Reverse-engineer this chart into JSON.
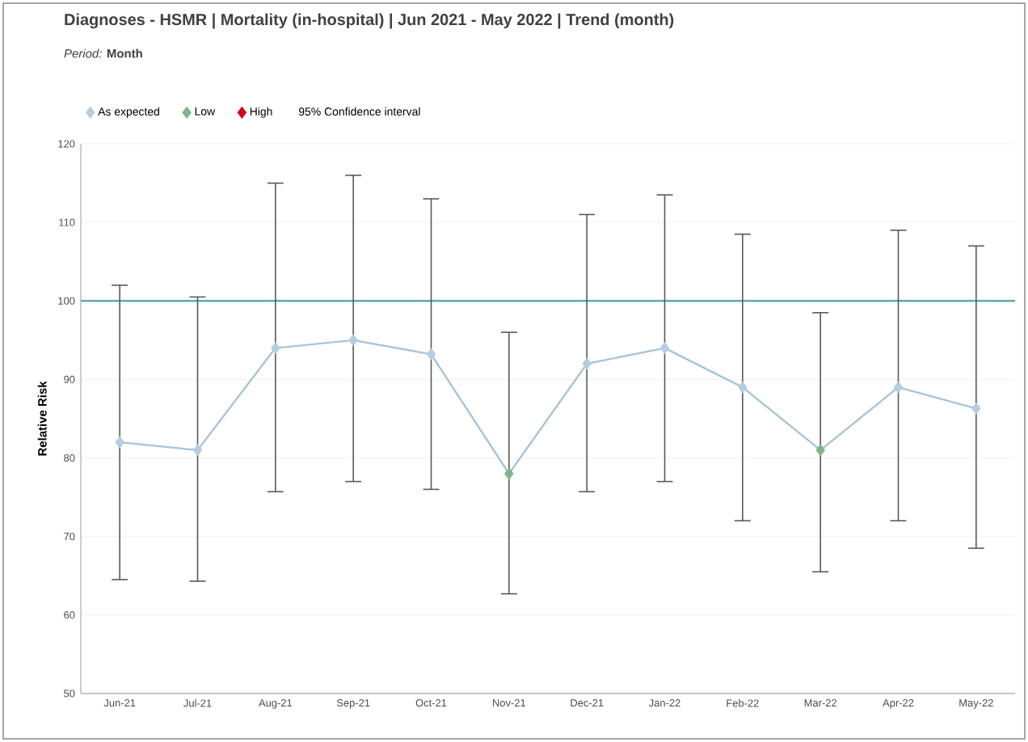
{
  "chart_data": {
    "type": "line",
    "title": "Diagnoses - HSMR | Mortality (in-hospital) | Jun 2021 - May 2022 | Trend (month)",
    "subtitle": "*Period:* **Month**",
    "ylabel": "Relative Risk",
    "categories": [
      "Jun-21",
      "Jul-21",
      "Aug-21",
      "Sep-21",
      "Oct-21",
      "Nov-21",
      "Dec-21",
      "Jan-22",
      "Feb-22",
      "Mar-22",
      "Apr-22",
      "May-22"
    ],
    "series": [
      {
        "color": "#a9c4d6",
        "marker": "none",
        "values": [
          82,
          81,
          94,
          95,
          93.2,
          78,
          92,
          94,
          89,
          81,
          89,
          86.3
        ],
        "errors": [
          [
            64.5,
            102
          ],
          [
            64.3,
            100.5
          ],
          [
            75.7,
            115
          ],
          [
            77,
            116
          ],
          [
            76,
            113
          ],
          [
            62.7,
            96
          ],
          [
            75.7,
            111
          ],
          [
            77,
            113.5
          ],
          [
            72,
            108.5
          ],
          [
            65.5,
            98.5
          ],
          [
            72,
            109
          ],
          [
            68.5,
            107
          ]
        ]
      },
      {
        "name": "As expected",
        "type": "scatter",
        "color": "#b4cde0",
        "marker": "diamond",
        "values": [
          82,
          81,
          94,
          95,
          93.2,
          null,
          92,
          94,
          89,
          null,
          89,
          86.3
        ]
      },
      {
        "name": "Low",
        "type": "scatter",
        "color": "#7fb58a",
        "marker": "diamond",
        "values": [
          null,
          null,
          null,
          null,
          null,
          78,
          null,
          null,
          null,
          81,
          null,
          null
        ]
      },
      {
        "name": "High",
        "type": "scatter",
        "color": "#d0021b",
        "marker": "diamond",
        "values": [
          null,
          null,
          null,
          null,
          null,
          null,
          null,
          null,
          null,
          null,
          null,
          null
        ]
      }
    ],
    "annotations": [
      "95% Confidence interval"
    ],
    "ylim": [
      50,
      120
    ],
    "yticks": [
      50,
      60,
      70,
      80,
      90,
      100,
      110,
      120
    ],
    "grid": "y",
    "legend": "top left",
    "ref_lines": [
      {
        "axis": "y",
        "value": 100,
        "color": "#5fada8"
      }
    ]
  }
}
